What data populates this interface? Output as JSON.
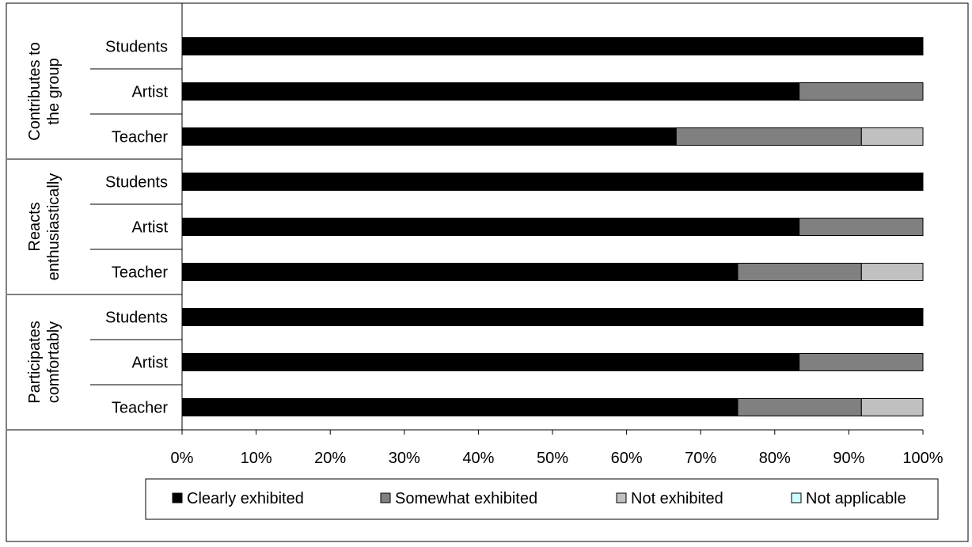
{
  "chart_data": {
    "type": "bar",
    "orientation": "horizontal",
    "stacked": "percent",
    "title": "",
    "xlabel": "",
    "ylabel": "",
    "xlim": [
      0,
      100
    ],
    "x_ticks": [
      "0%",
      "10%",
      "20%",
      "30%",
      "40%",
      "50%",
      "60%",
      "70%",
      "80%",
      "90%",
      "100%"
    ],
    "grid": false,
    "legend_position": "bottom",
    "groups": [
      {
        "label": "Contributes to the group",
        "label_lines": [
          "Contributes to",
          "the group"
        ]
      },
      {
        "label": "Reacts enthusiastically",
        "label_lines": [
          "Reacts",
          "enthusiastically"
        ]
      },
      {
        "label": "Participates comfortably",
        "label_lines": [
          "Participates",
          "comfortably"
        ]
      }
    ],
    "categories": [
      "Students",
      "Artist",
      "Teacher"
    ],
    "series": [
      {
        "name": "Clearly exhibited",
        "color": "#000000",
        "values": [
          [
            100,
            83.3,
            66.7
          ],
          [
            100,
            83.3,
            75.0
          ],
          [
            100,
            83.3,
            75.0
          ]
        ]
      },
      {
        "name": "Somewhat exhibited",
        "color": "#808080",
        "values": [
          [
            0,
            16.7,
            25.0
          ],
          [
            0,
            16.7,
            16.7
          ],
          [
            0,
            16.7,
            16.7
          ]
        ]
      },
      {
        "name": "Not exhibited",
        "color": "#c0c0c0",
        "values": [
          [
            0,
            0,
            8.3
          ],
          [
            0,
            0,
            8.3
          ],
          [
            0,
            0,
            8.3
          ]
        ]
      },
      {
        "name": "Not applicable",
        "color": "#ccffff",
        "values": [
          [
            0,
            0,
            0
          ],
          [
            0,
            0,
            0
          ],
          [
            0,
            0,
            0
          ]
        ]
      }
    ]
  }
}
